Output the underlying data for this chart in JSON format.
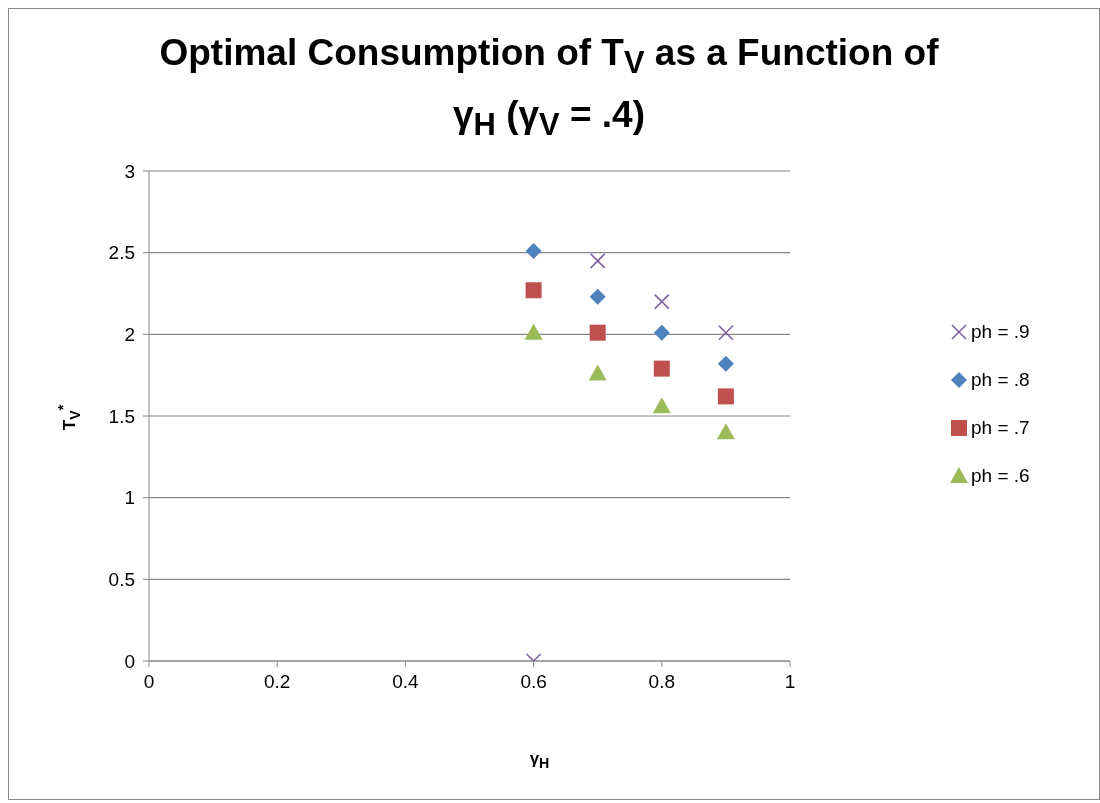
{
  "chart_data": {
    "type": "scatter",
    "title": "Optimal Consumption of T$_{V}$ as a Function of γ$_{H}$ (γ$_{V}$ = .4)",
    "xlabel": "γ$_{H}$",
    "ylabel": "T$_{V}$$^{*}$",
    "x": [
      0.6,
      0.7,
      0.8,
      0.9
    ],
    "series": [
      {
        "name": "ph = .9",
        "color": "#8064a2",
        "marker": "cross",
        "values": [
          0,
          2.45,
          2.2,
          2.01
        ]
      },
      {
        "name": "ph = .8",
        "color": "#4f81bd",
        "marker": "diamond",
        "values": [
          2.51,
          2.23,
          2.01,
          1.82
        ]
      },
      {
        "name": "ph = .7",
        "color": "#c0504d",
        "marker": "square",
        "values": [
          2.27,
          2.01,
          1.79,
          1.62
        ]
      },
      {
        "name": "ph = .6",
        "color": "#9bbb59",
        "marker": "triangle",
        "values": [
          2.01,
          1.76,
          1.56,
          1.4
        ]
      }
    ],
    "xlim": [
      0,
      1
    ],
    "xticks": [
      0,
      0.2,
      0.4,
      0.6,
      0.8,
      1
    ],
    "ylim": [
      0,
      3
    ],
    "yticks": [
      0,
      0.5,
      1,
      1.5,
      2,
      2.5,
      3
    ],
    "grid": "y",
    "legend": "right"
  }
}
